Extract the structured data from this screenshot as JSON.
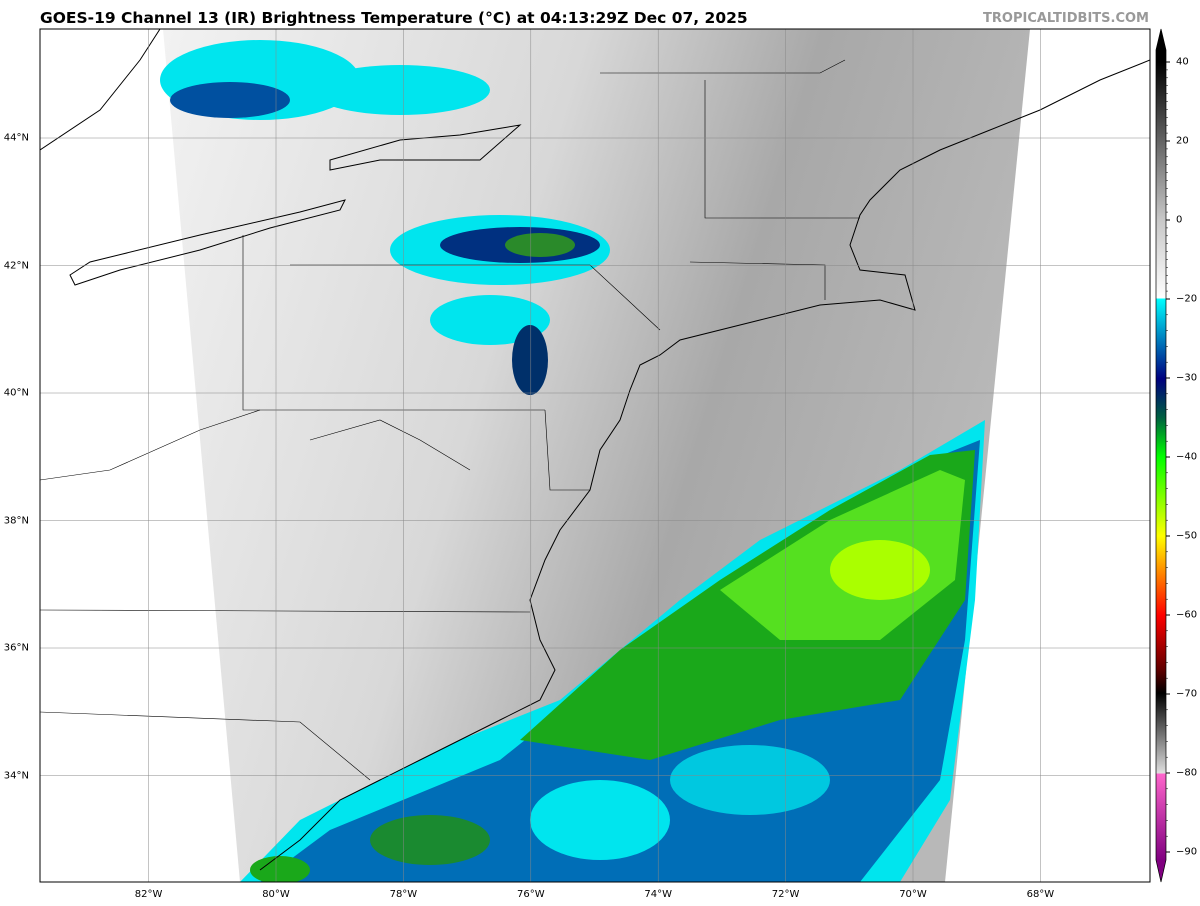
{
  "title": "GOES-19 Channel 13 (IR) Brightness Temperature (°C) at 04:13:29Z Dec 07, 2025",
  "site": "TROPICALTIDBITS.COM",
  "map": {
    "lat_labels": [
      {
        "v": 44,
        "t": "44°N"
      },
      {
        "v": 42,
        "t": "42°N"
      },
      {
        "v": 40,
        "t": "40°N"
      },
      {
        "v": 38,
        "t": "38°N"
      },
      {
        "v": 36,
        "t": "36°N"
      },
      {
        "v": 34,
        "t": "34°N"
      }
    ],
    "lon_labels": [
      {
        "v": -82,
        "t": "82°W"
      },
      {
        "v": -80,
        "t": "80°W"
      },
      {
        "v": -78,
        "t": "78°W"
      },
      {
        "v": -76,
        "t": "76°W"
      },
      {
        "v": -74,
        "t": "74°W"
      },
      {
        "v": -72,
        "t": "72°W"
      },
      {
        "v": -70,
        "t": "70°W"
      },
      {
        "v": -68,
        "t": "68°W"
      }
    ]
  },
  "colorbar": {
    "ticks": [
      "40",
      "20",
      "0",
      "−20",
      "−30",
      "−40",
      "−50",
      "−60",
      "−70",
      "−80",
      "−90"
    ],
    "tick_values": [
      40,
      20,
      0,
      -20,
      -30,
      -40,
      -50,
      -60,
      -70,
      -80,
      -90
    ],
    "colors": {
      "warm": "#ffffff",
      "cold_cyan": "#00ffff",
      "navy": "#00007f",
      "green": "#00ff00",
      "yellow": "#ffff00",
      "red": "#ff0000",
      "black": "#000000",
      "pink": "#ff66cc",
      "purple": "#800080"
    }
  }
}
